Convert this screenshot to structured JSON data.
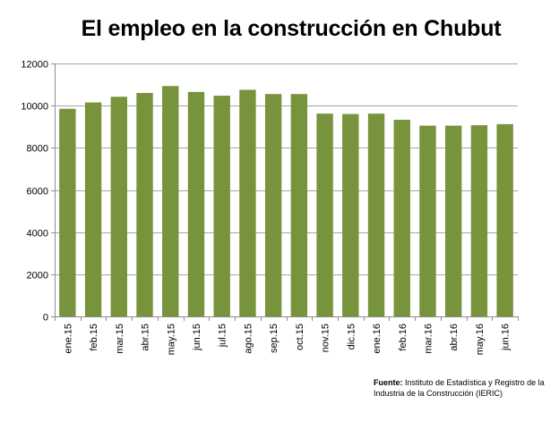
{
  "chart_data": {
    "type": "bar",
    "title": "El empleo en la construcción en Chubut",
    "xlabel": "",
    "ylabel": "",
    "categories": [
      "ene.15",
      "feb.15",
      "mar.15",
      "abr.15",
      "may.15",
      "jun.15",
      "jul.15",
      "ago.15",
      "sep.15",
      "oct.15",
      "nov.15",
      "dic.15",
      "ene.16",
      "feb.16",
      "mar.16",
      "abr.16",
      "may.16",
      "jun.16"
    ],
    "values": [
      9850,
      10150,
      10420,
      10600,
      10930,
      10650,
      10470,
      10750,
      10550,
      10550,
      9620,
      9600,
      9620,
      9330,
      9050,
      9050,
      9070,
      9120
    ],
    "ylim": [
      0,
      12000
    ],
    "yticks": [
      0,
      2000,
      4000,
      6000,
      8000,
      10000,
      12000
    ],
    "grid": true,
    "bar_color": "#77933c",
    "legend": "none"
  },
  "source": {
    "label": "Fuente:",
    "text": "Instituto de Estadística y Registro de la Industria de la Construcción (IERIC)"
  }
}
